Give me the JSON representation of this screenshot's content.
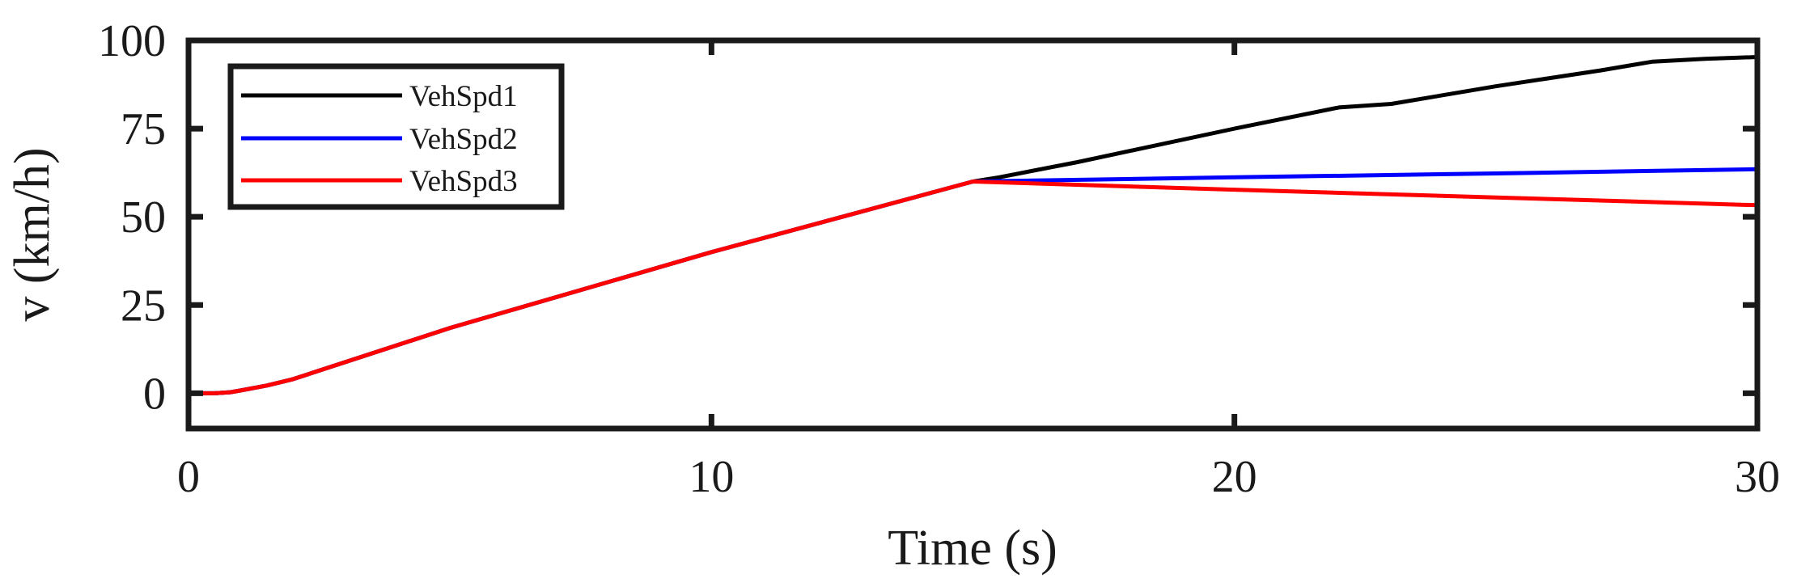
{
  "chart_data": {
    "type": "line",
    "xlabel": "Time (s)",
    "ylabel": "v (km/h)",
    "xlim": [
      0,
      30
    ],
    "ylim": [
      -10,
      100
    ],
    "xticks": [
      0,
      10,
      20,
      30
    ],
    "yticks": [
      0,
      25,
      50,
      75,
      100
    ],
    "xtick_labels": [
      "0",
      "10",
      "20",
      "30"
    ],
    "ytick_labels": [
      "0",
      "25",
      "50",
      "75",
      "100"
    ],
    "grid": false,
    "legend_position": "top-left",
    "series": [
      {
        "name": "VehSpd1",
        "color": "#000000",
        "x": [
          0,
          0.5,
          0.8,
          1.0,
          1.5,
          2,
          5,
          10,
          15,
          15.5,
          17,
          20,
          22,
          23,
          25,
          27,
          28,
          29,
          30
        ],
        "y": [
          0,
          0,
          0.3,
          0.8,
          2.2,
          4.0,
          18.5,
          40.0,
          60.0,
          61.2,
          65.5,
          75.0,
          81.0,
          82.0,
          87.0,
          91.5,
          94.0,
          94.8,
          95.3
        ]
      },
      {
        "name": "VehSpd2",
        "color": "#0000ff",
        "x": [
          0,
          0.5,
          0.8,
          1.0,
          1.5,
          2,
          5,
          10,
          15,
          20,
          25,
          30
        ],
        "y": [
          0,
          0,
          0.3,
          0.8,
          2.2,
          4.0,
          18.5,
          40.0,
          60.0,
          61.2,
          62.3,
          63.5
        ]
      },
      {
        "name": "VehSpd3",
        "color": "#ff0000",
        "x": [
          0,
          0.5,
          0.8,
          1.0,
          1.5,
          2,
          5,
          10,
          15,
          20,
          25,
          30
        ],
        "y": [
          0,
          0,
          0.3,
          0.8,
          2.2,
          4.0,
          18.5,
          40.0,
          60.0,
          57.7,
          55.5,
          53.3
        ]
      }
    ]
  }
}
